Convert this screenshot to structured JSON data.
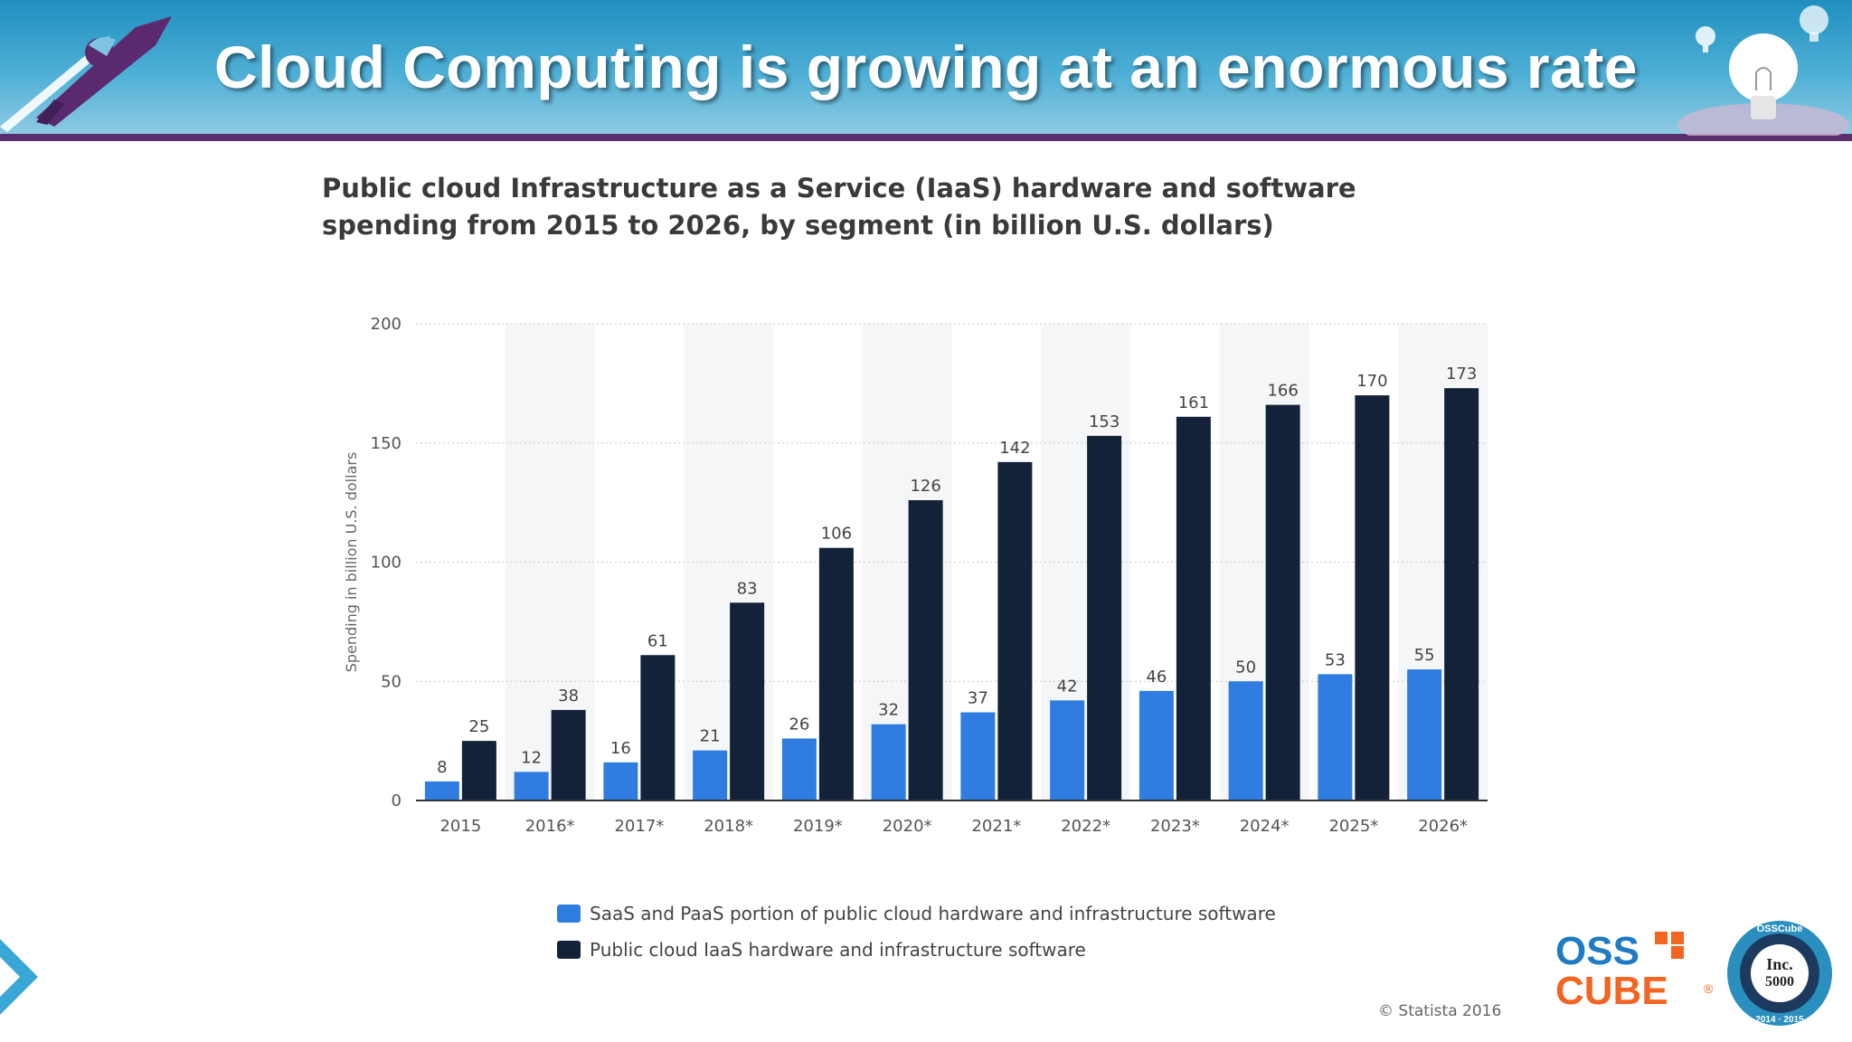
{
  "slide": {
    "title": "Cloud Computing is growing at an enormous rate"
  },
  "logo": {
    "text_top": "OSS",
    "text_bottom": "CUBE",
    "registered": "®"
  },
  "badge": {
    "brand": "OSSCube",
    "inc": "Inc.",
    "number": "5000",
    "years": "2014 · 2015"
  },
  "colors": {
    "saas": "#2f7de1",
    "iaas": "#132238",
    "logo_blue": "#1f7cc4",
    "logo_orange": "#f26522"
  },
  "chart_data": {
    "type": "bar",
    "title": "Public cloud Infrastructure as a Service (IaaS) hardware and software spending from 2015 to 2026, by segment (in billion U.S. dollars)",
    "ylabel": "Spending in billion U.S. dollars",
    "xlabel": "",
    "ylim": [
      0,
      200
    ],
    "yticks": [
      0,
      50,
      100,
      150,
      200
    ],
    "grid": true,
    "legend_position": "bottom",
    "categories": [
      "2015",
      "2016*",
      "2017*",
      "2018*",
      "2019*",
      "2020*",
      "2021*",
      "2022*",
      "2023*",
      "2024*",
      "2025*",
      "2026*"
    ],
    "series": [
      {
        "name": "SaaS and PaaS portion of public cloud hardware and infrastructure software",
        "color": "#2f7de1",
        "values": [
          8,
          12,
          16,
          21,
          26,
          32,
          37,
          42,
          46,
          50,
          53,
          55
        ]
      },
      {
        "name": "Public cloud IaaS hardware and infrastructure software",
        "color": "#132238",
        "values": [
          25,
          38,
          61,
          83,
          106,
          126,
          142,
          153,
          161,
          166,
          170,
          173
        ]
      }
    ],
    "source": "© Statista 2016"
  }
}
